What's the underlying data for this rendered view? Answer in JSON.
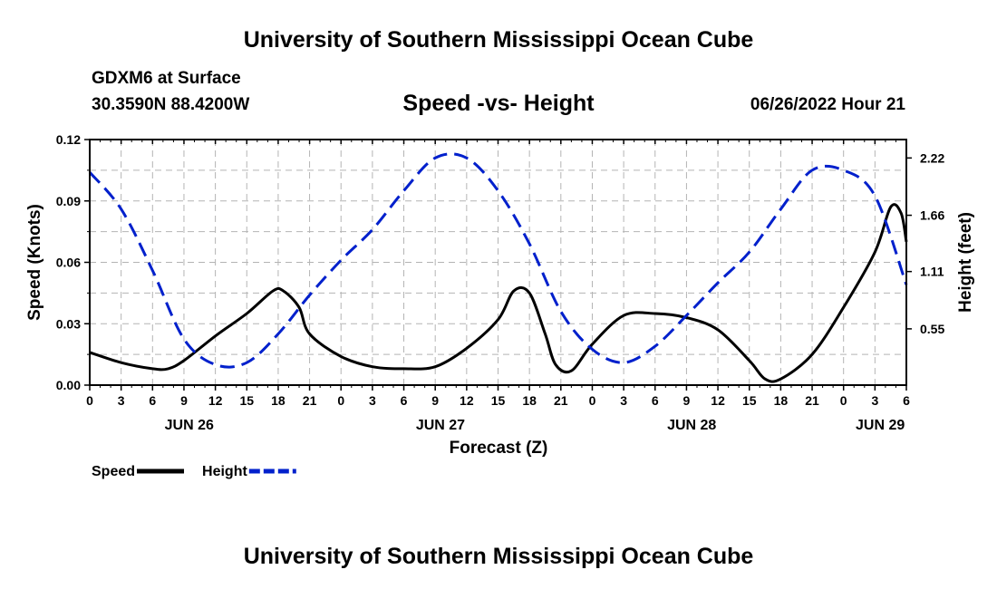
{
  "header": {
    "main_title": "University of Southern Mississippi Ocean Cube",
    "station": "GDXM6 at Surface",
    "coords": "30.3590N  88.4200W",
    "datetime": "06/26/2022 Hour 21",
    "bottom_title": "University of Southern Mississippi Ocean Cube"
  },
  "chart_data": {
    "type": "line",
    "title": "Speed -vs- Height",
    "xlabel": "Forecast (Z)",
    "ylabel": "Speed (Knots)",
    "y2label": "Height (feet)",
    "x_unit": "hours since 00Z Jun 26",
    "xlim": [
      0,
      78
    ],
    "ylim": [
      0,
      0.12
    ],
    "y2lim": [
      0,
      2.4
    ],
    "grid": true,
    "legend_position": "bottom-left",
    "x_tick_labels": [
      "0",
      "3",
      "6",
      "9",
      "12",
      "15",
      "18",
      "21",
      "0",
      "3",
      "6",
      "9",
      "12",
      "15",
      "18",
      "21",
      "0",
      "3",
      "6",
      "9",
      "12",
      "15",
      "18",
      "21",
      "0",
      "3",
      "6"
    ],
    "y_ticks": [
      "0.00",
      "0.03",
      "0.06",
      "0.09",
      "0.12"
    ],
    "y2_ticks": [
      {
        "label": "0.55",
        "value": 0.55
      },
      {
        "label": "1.11",
        "value": 1.11
      },
      {
        "label": "1.66",
        "value": 1.66
      },
      {
        "label": "2.22",
        "value": 2.22
      }
    ],
    "day_labels": [
      {
        "label": "JUN 26",
        "x": 9.5
      },
      {
        "label": "JUN 27",
        "x": 33.5
      },
      {
        "label": "JUN 28",
        "x": 57.5
      },
      {
        "label": "JUN 29",
        "x": 75.5
      }
    ],
    "series": [
      {
        "name": "Speed",
        "axis": "left",
        "color": "#000000",
        "dash": "solid",
        "x": [
          0,
          3,
          6,
          7.5,
          9,
          12,
          15,
          17.5,
          18.5,
          20,
          21,
          24,
          27,
          30,
          33,
          36,
          39,
          40.5,
          42,
          43.5,
          44.5,
          46,
          48,
          51,
          54,
          57,
          60,
          63,
          64.5,
          66,
          69,
          72,
          75,
          76.5,
          77.5,
          78
        ],
        "y": [
          0.016,
          0.011,
          0.008,
          0.008,
          0.012,
          0.024,
          0.035,
          0.046,
          0.046,
          0.038,
          0.025,
          0.014,
          0.009,
          0.008,
          0.009,
          0.018,
          0.032,
          0.046,
          0.045,
          0.025,
          0.01,
          0.007,
          0.02,
          0.034,
          0.035,
          0.033,
          0.027,
          0.012,
          0.003,
          0.003,
          0.015,
          0.038,
          0.065,
          0.087,
          0.084,
          0.07
        ]
      },
      {
        "name": "Height",
        "axis": "right",
        "color": "#0020cc",
        "dash": "dashed",
        "x": [
          0,
          3,
          6,
          9,
          12,
          15,
          18,
          21,
          24,
          27,
          30,
          33,
          36,
          39,
          42,
          45,
          48,
          51,
          54,
          57,
          60,
          63,
          66,
          69,
          72,
          75,
          78
        ],
        "y": [
          2.08,
          1.72,
          1.12,
          0.45,
          0.2,
          0.22,
          0.5,
          0.88,
          1.22,
          1.52,
          1.9,
          2.22,
          2.22,
          1.9,
          1.38,
          0.72,
          0.35,
          0.22,
          0.38,
          0.68,
          1.0,
          1.3,
          1.72,
          2.1,
          2.1,
          1.85,
          0.98
        ]
      }
    ]
  }
}
